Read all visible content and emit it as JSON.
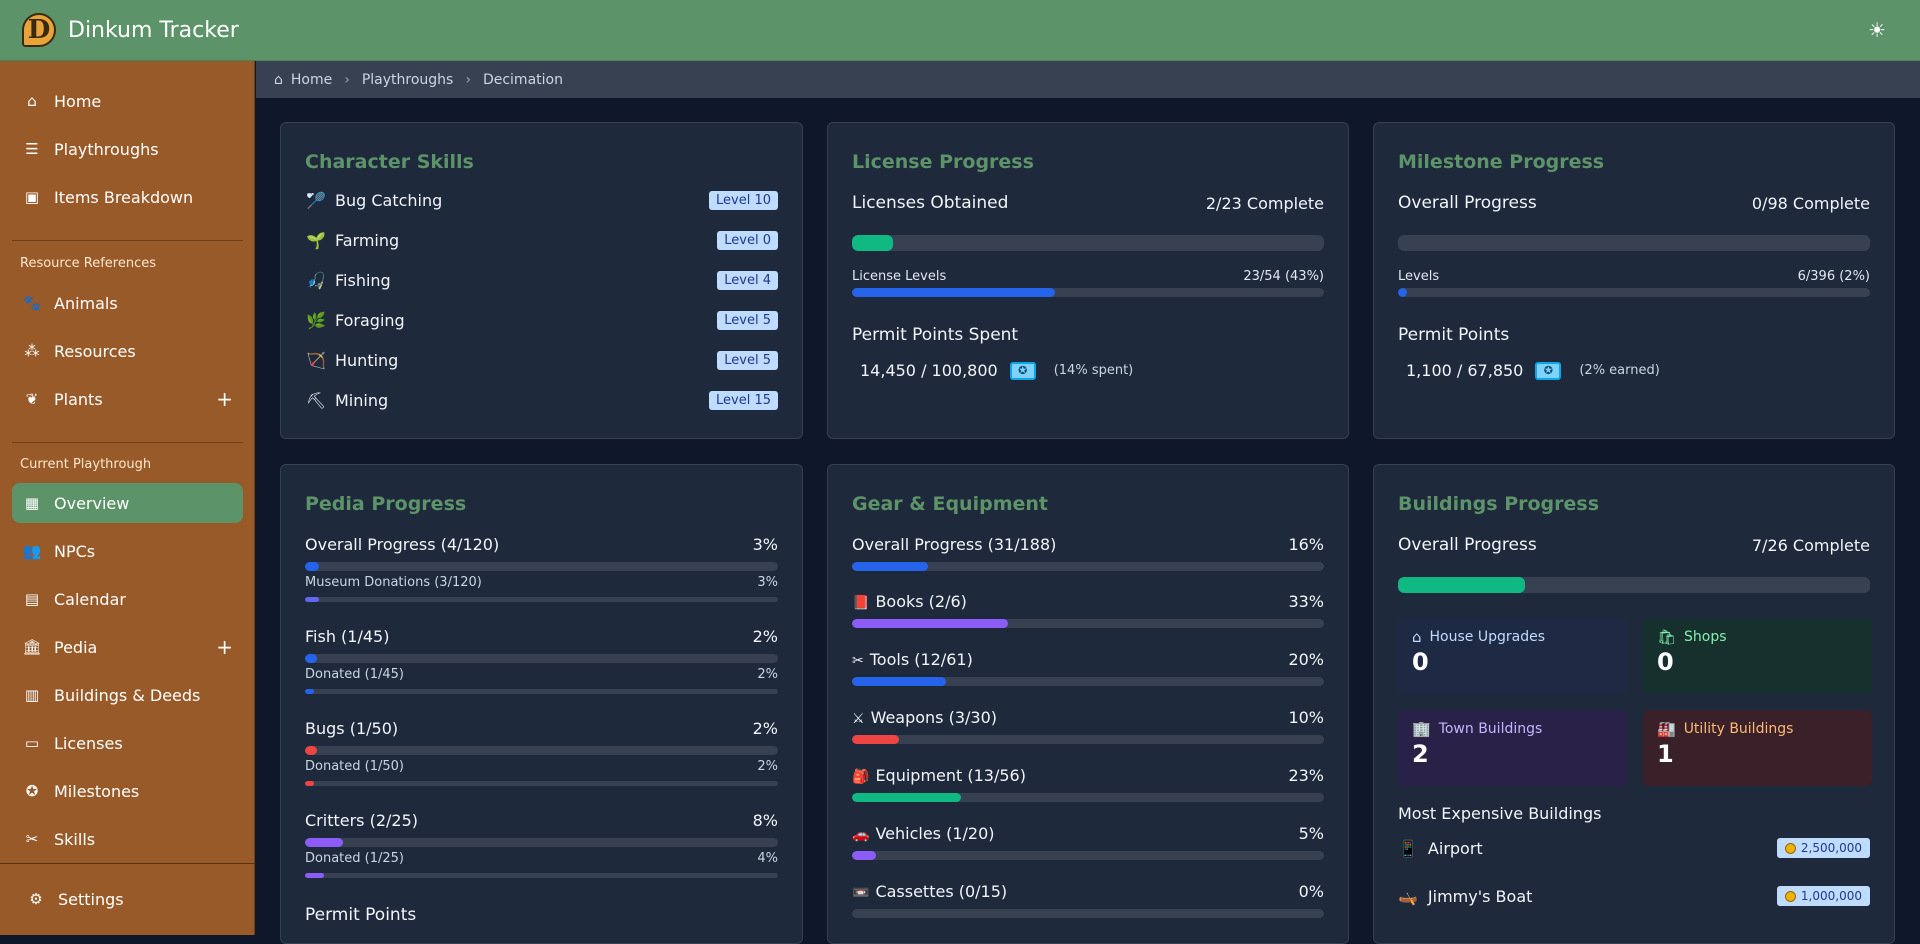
{
  "app": {
    "title": "Dinkum Tracker",
    "logo_letter": "D"
  },
  "nav": {
    "main": [
      {
        "label": "Home",
        "icon": "home-icon"
      },
      {
        "label": "Playthroughs",
        "icon": "list-icon"
      },
      {
        "label": "Items Breakdown",
        "icon": "boxes-icon"
      }
    ],
    "resource_section": "Resource References",
    "resources": [
      {
        "label": "Animals",
        "icon": "paw-icon"
      },
      {
        "label": "Resources",
        "icon": "resources-icon"
      },
      {
        "label": "Plants",
        "icon": "sprout-icon"
      }
    ],
    "current_section": "Current Playthrough",
    "current": [
      {
        "label": "Overview",
        "icon": "dashboard-icon"
      },
      {
        "label": "NPCs",
        "icon": "users-icon"
      },
      {
        "label": "Calendar",
        "icon": "calendar-icon"
      },
      {
        "label": "Pedia",
        "icon": "museum-icon"
      },
      {
        "label": "Buildings & Deeds",
        "icon": "building-icon"
      },
      {
        "label": "Licenses",
        "icon": "id-card-icon"
      },
      {
        "label": "Milestones",
        "icon": "award-icon"
      },
      {
        "label": "Skills",
        "icon": "tools-icon"
      }
    ],
    "settings": "Settings"
  },
  "breadcrumb": [
    "Home",
    "Playthroughs",
    "Decimation"
  ],
  "skills": {
    "title": "Character Skills",
    "items": [
      {
        "name": "Bug Catching",
        "level": "Level 10",
        "icon": "🏸"
      },
      {
        "name": "Farming",
        "level": "Level 0",
        "icon": "🌱"
      },
      {
        "name": "Fishing",
        "level": "Level 4",
        "icon": "🎣"
      },
      {
        "name": "Foraging",
        "level": "Level 5",
        "icon": "🌿"
      },
      {
        "name": "Hunting",
        "level": "Level 5",
        "icon": "🏹"
      },
      {
        "name": "Mining",
        "level": "Level 15",
        "icon": "⛏"
      }
    ]
  },
  "license": {
    "title": "License Progress",
    "obtained_label": "Licenses Obtained",
    "obtained_value": "2/23 Complete",
    "obtained_pct": 0.087,
    "levels_label": "License Levels",
    "levels_value": "23/54 (43%)",
    "levels_pct": 0.43,
    "permit_label": "Permit Points Spent",
    "permit_value": "14,450 / 100,800",
    "permit_note": "(14% spent)"
  },
  "milestone": {
    "title": "Milestone Progress",
    "overall_label": "Overall Progress",
    "overall_value": "0/98 Complete",
    "overall_pct": 0,
    "levels_label": "Levels",
    "levels_value": "6/396 (2%)",
    "levels_pct": 0.02,
    "permit_label": "Permit Points",
    "permit_value": "1,100 / 67,850",
    "permit_note": "(2% earned)"
  },
  "pedia": {
    "title": "Pedia Progress",
    "groups": [
      {
        "label": "Overall Progress (4/120)",
        "pct": "3%",
        "p": 0.03,
        "color": "#2563eb",
        "sub": "Museum Donations (3/120)",
        "sub_pct": "3%",
        "sp": 0.03,
        "sub_color": "#6366f1"
      },
      {
        "label": "Fish (1/45)",
        "pct": "2%",
        "p": 0.02,
        "color": "#2563eb",
        "sub": "Donated (1/45)",
        "sub_pct": "2%",
        "sp": 0.02,
        "sub_color": "#2563eb"
      },
      {
        "label": "Bugs (1/50)",
        "pct": "2%",
        "p": 0.02,
        "color": "#ef4444",
        "sub": "Donated (1/50)",
        "sub_pct": "2%",
        "sp": 0.02,
        "sub_color": "#ef4444"
      },
      {
        "label": "Critters (2/25)",
        "pct": "8%",
        "p": 0.08,
        "color": "#8b5cf6",
        "sub": "Donated (1/25)",
        "sub_pct": "4%",
        "sp": 0.04,
        "sub_color": "#8b5cf6"
      }
    ],
    "permit_label": "Permit Points"
  },
  "gear": {
    "title": "Gear & Equipment",
    "overall_label": "Overall Progress (31/188)",
    "overall_pct": "16%",
    "overall_p": 0.16,
    "items": [
      {
        "label": "Books (2/6)",
        "pct": "33%",
        "p": 0.33,
        "color": "#8b5cf6",
        "icon": "book-icon",
        "glyph": "📕"
      },
      {
        "label": "Tools (12/61)",
        "pct": "20%",
        "p": 0.2,
        "color": "#2563eb",
        "icon": "tools-icon",
        "glyph": "✂"
      },
      {
        "label": "Weapons (3/30)",
        "pct": "10%",
        "p": 0.1,
        "color": "#ef4444",
        "icon": "swords-icon",
        "glyph": "⚔"
      },
      {
        "label": "Equipment (13/56)",
        "pct": "23%",
        "p": 0.23,
        "color": "#10b981",
        "icon": "backpack-icon",
        "glyph": "🎒"
      },
      {
        "label": "Vehicles (1/20)",
        "pct": "5%",
        "p": 0.05,
        "color": "#8b5cf6",
        "icon": "car-icon",
        "glyph": "🚗"
      },
      {
        "label": "Cassettes (0/15)",
        "pct": "0%",
        "p": 0,
        "color": "#2563eb",
        "icon": "cassette-icon",
        "glyph": "📼"
      }
    ]
  },
  "buildings": {
    "title": "Buildings Progress",
    "overall_label": "Overall Progress",
    "overall_value": "7/26 Complete",
    "overall_pct": 0.27,
    "tiles": [
      {
        "label": "House Upgrades",
        "value": "0",
        "icon": "house-icon",
        "glyph": "⌂",
        "bg": "#1e2a44",
        "color": "#bfdbfe"
      },
      {
        "label": "Shops",
        "value": "0",
        "icon": "shop-icon",
        "glyph": "🛍",
        "bg": "#15302d",
        "color": "#86efac"
      },
      {
        "label": "Town Buildings",
        "value": "2",
        "icon": "town-building-icon",
        "glyph": "🏢",
        "bg": "#2a2148",
        "color": "#c4b5fd"
      },
      {
        "label": "Utility Buildings",
        "value": "1",
        "icon": "utility-building-icon",
        "glyph": "🏭",
        "bg": "#3a2028",
        "color": "#fdba74"
      }
    ],
    "expensive_label": "Most Expensive Buildings",
    "expensive": [
      {
        "name": "Airport",
        "cost": "2,500,000",
        "glyph": "📱"
      },
      {
        "name": "Jimmy's Boat",
        "cost": "1,000,000",
        "glyph": "🛶"
      }
    ]
  }
}
